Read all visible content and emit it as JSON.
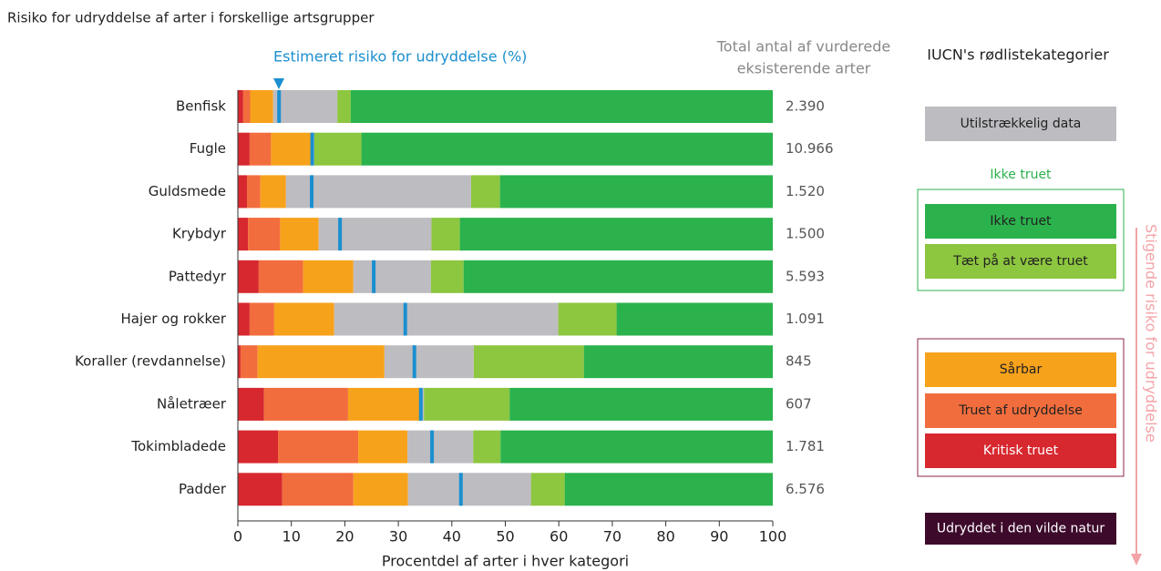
{
  "chart_data": {
    "type": "stacked_bar_horizontal",
    "title": "Risiko for udryddelse af arter i forskellige artsgrupper",
    "categories": [
      "Benfisk",
      "Fugle",
      "Guldsmede",
      "Krybdyr",
      "Pattedyr",
      "Hajer og rokker",
      "Koraller (revdannelse)",
      "Nåletræer",
      "Tokimbladede",
      "Padder"
    ],
    "series": [
      {
        "name": "Kritisk truet",
        "color": "#d7282f",
        "values": [
          1.0,
          2.2,
          1.7,
          1.9,
          3.9,
          2.2,
          0.5,
          4.9,
          7.5,
          8.3
        ]
      },
      {
        "name": "Truet af udryddelse",
        "color": "#f26d3d",
        "values": [
          1.3,
          4.0,
          2.5,
          6.0,
          8.3,
          4.6,
          3.2,
          15.7,
          15.0,
          13.3
        ]
      },
      {
        "name": "Sårbar",
        "color": "#f7a21b",
        "values": [
          4.3,
          7.7,
          4.8,
          7.2,
          9.4,
          11.2,
          23.7,
          13.3,
          9.2,
          10.2
        ]
      },
      {
        "name": "Utilstrækkelig data",
        "color": "#bdbcc1",
        "values": [
          12.0,
          0.4,
          34.6,
          21.1,
          14.5,
          41.9,
          16.7,
          0.9,
          12.3,
          23.0
        ]
      },
      {
        "name": "Tæt på at være truet",
        "color": "#8dc63f",
        "values": [
          2.5,
          8.8,
          5.4,
          5.3,
          6.1,
          10.9,
          20.6,
          16.0,
          5.1,
          6.3
        ]
      },
      {
        "name": "Ikke truet",
        "color": "#2bb24c",
        "values": [
          78.9,
          76.9,
          51.0,
          58.5,
          57.8,
          29.2,
          35.3,
          49.2,
          50.9,
          38.9
        ]
      },
      {
        "name": "Udryddet i den vilde natur",
        "color": "#3d0a2b",
        "values": [
          0,
          0,
          0,
          0,
          0,
          0,
          0,
          0,
          0,
          0
        ]
      }
    ],
    "risk": {
      "name": "Estimeret risiko for udryddelse (%)",
      "color": "#1b8fcf",
      "values": [
        7.7,
        13.9,
        13.8,
        19.1,
        25.4,
        31.3,
        33.0,
        34.2,
        36.3,
        41.7
      ]
    },
    "totals": {
      "title": [
        "Total antal af vurderede",
        "eksisterende arter"
      ],
      "values": [
        2390,
        10966,
        1520,
        1500,
        5593,
        1091,
        845,
        607,
        1781,
        6576
      ],
      "value_labels": [
        "2.390",
        "10.966",
        "1.520",
        "1.500",
        "5.593",
        "1.091",
        "845",
        "607",
        "1.781",
        "6.576"
      ]
    },
    "legend_title": "IUCN's rødlistekategorier",
    "legend_group_label": "Ikke truet",
    "legend_arrow_label": "Stigende risiko for udryddelse",
    "xlabel": "Procentdel af arter i hver kategori",
    "xlim": [
      0,
      100
    ],
    "xticks": [
      0,
      10,
      20,
      30,
      40,
      50,
      60,
      70,
      80,
      90,
      100
    ]
  }
}
